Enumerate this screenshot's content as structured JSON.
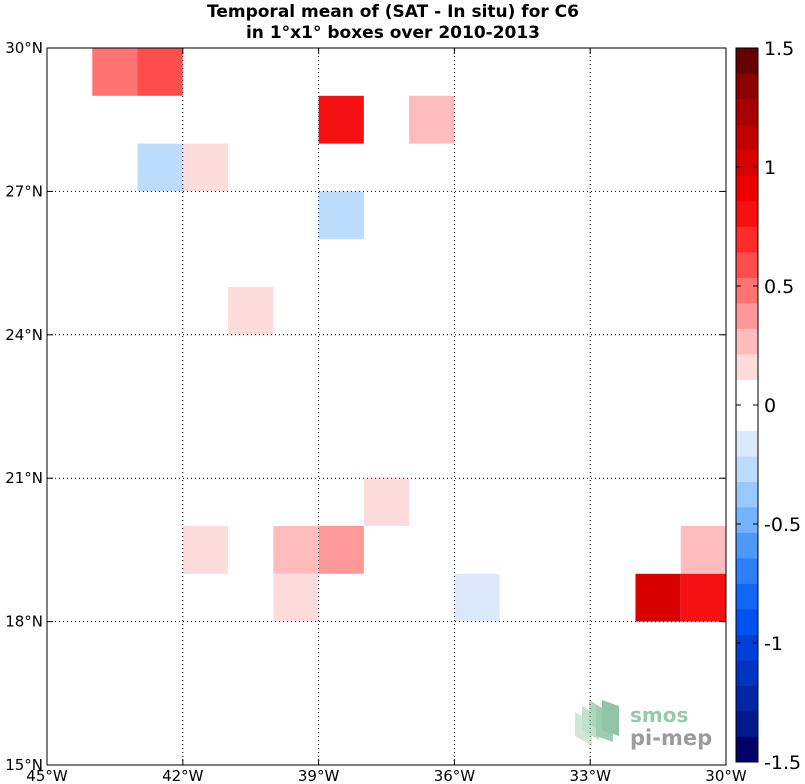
{
  "chart_data": {
    "type": "heatmap",
    "title": "Temporal mean of (SAT - In situ) for C6",
    "subtitle": "in 1°x1° boxes over 2010-2013",
    "xlim": [
      -45,
      -30
    ],
    "ylim": [
      15,
      30
    ],
    "grid": true,
    "x_ticks": [
      {
        "value": -45,
        "label": "45°W"
      },
      {
        "value": -42,
        "label": "42°W"
      },
      {
        "value": -39,
        "label": "39°W"
      },
      {
        "value": -36,
        "label": "36°W"
      },
      {
        "value": -33,
        "label": "33°W"
      },
      {
        "value": -30,
        "label": "30°W"
      }
    ],
    "y_ticks": [
      {
        "value": 15,
        "label": "15°N"
      },
      {
        "value": 18,
        "label": "18°N"
      },
      {
        "value": 21,
        "label": "21°N"
      },
      {
        "value": 24,
        "label": "24°N"
      },
      {
        "value": 27,
        "label": "27°N"
      },
      {
        "value": 30,
        "label": "30°N"
      }
    ],
    "cells": [
      {
        "lon": -44,
        "lat": 29,
        "value": 0.5
      },
      {
        "lon": -43,
        "lat": 29,
        "value": 0.6
      },
      {
        "lon": -39,
        "lat": 28,
        "value": 0.8
      },
      {
        "lon": -37,
        "lat": 28,
        "value": 0.3
      },
      {
        "lon": -43,
        "lat": 27,
        "value": -0.3
      },
      {
        "lon": -42,
        "lat": 27,
        "value": 0.15
      },
      {
        "lon": -39,
        "lat": 26,
        "value": -0.3
      },
      {
        "lon": -41,
        "lat": 24,
        "value": 0.15
      },
      {
        "lon": -38,
        "lat": 20,
        "value": 0.15
      },
      {
        "lon": -42,
        "lat": 19,
        "value": 0.15
      },
      {
        "lon": -40,
        "lat": 19,
        "value": 0.3
      },
      {
        "lon": -39,
        "lat": 19,
        "value": 0.4
      },
      {
        "lon": -31,
        "lat": 19,
        "value": 0.3
      },
      {
        "lon": -40,
        "lat": 18,
        "value": 0.15
      },
      {
        "lon": -36,
        "lat": 18,
        "value": -0.15
      },
      {
        "lon": -32,
        "lat": 18,
        "value": 1.0
      },
      {
        "lon": -31,
        "lat": 18,
        "value": 0.85
      }
    ],
    "colorbar": {
      "min": -1.5,
      "max": 1.5,
      "ticks": [
        {
          "value": 1.5,
          "label": "1.5"
        },
        {
          "value": 1,
          "label": "1"
        },
        {
          "value": 0.5,
          "label": "0.5"
        },
        {
          "value": 0,
          "label": "0"
        },
        {
          "value": -0.5,
          "label": "-0.5"
        },
        {
          "value": -1,
          "label": "-1"
        },
        {
          "value": -1.5,
          "label": "-1.5"
        }
      ],
      "colors": [
        "#000066",
        "#001a8c",
        "#0026a6",
        "#0033bf",
        "#0040d9",
        "#0052ee",
        "#1166f5",
        "#2b80f8",
        "#4d99fa",
        "#73b3fc",
        "#99c8fd",
        "#bcdcfe",
        "#dce9fd",
        "#ffffff",
        "#ffffff",
        "#ffdcdc",
        "#ffbcbc",
        "#ff9999",
        "#ff7373",
        "#ff4d4d",
        "#ff2b2b",
        "#f51111",
        "#ee0000",
        "#d90000",
        "#bf0000",
        "#a60000",
        "#8c0000",
        "#660000"
      ]
    }
  },
  "logo": {
    "line1": "smos",
    "line2": "pi-mep"
  }
}
